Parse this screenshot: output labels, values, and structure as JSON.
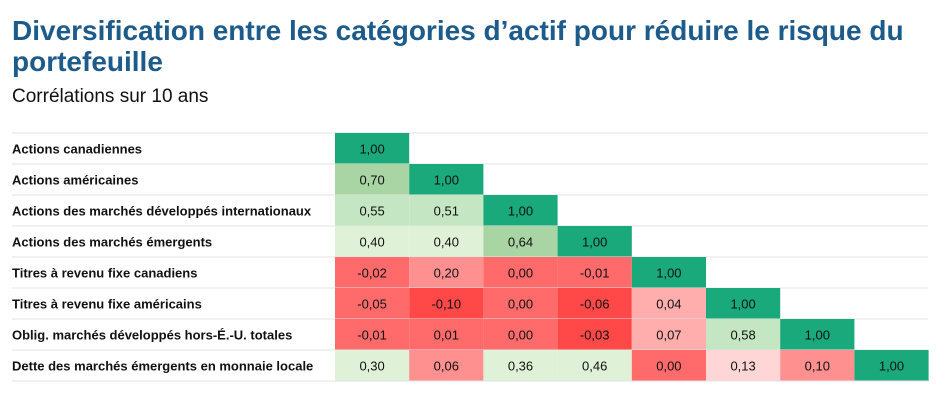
{
  "title": "Diversification entre les catégories d’actif pour réduire le risque du portefeuille",
  "subtitle": "Corrélations sur 10 ans",
  "chart_data": {
    "type": "heatmap",
    "title": "Diversification entre les catégories d’actif pour réduire le risque du portefeuille",
    "subtitle": "Corrélations sur 10 ans",
    "rows": [
      "Actions canadiennes",
      "Actions américaines",
      "Actions des marchés développés internationaux",
      "Actions des marchés émergents",
      "Titres à revenu fixe canadiens",
      "Titres à revenu fixe américains",
      "Oblig. marchés développés hors-É.-U. totales",
      "Dette des marchés émergents en monnaie locale"
    ],
    "values": [
      [
        1.0
      ],
      [
        0.7,
        1.0
      ],
      [
        0.55,
        0.51,
        1.0
      ],
      [
        0.4,
        0.4,
        0.64,
        1.0
      ],
      [
        -0.02,
        0.2,
        0.0,
        -0.01,
        1.0
      ],
      [
        -0.05,
        -0.1,
        0.0,
        -0.06,
        0.04,
        1.0
      ],
      [
        -0.01,
        0.01,
        0.0,
        -0.03,
        0.07,
        0.58,
        1.0
      ],
      [
        0.3,
        0.06,
        0.36,
        0.46,
        0.0,
        0.13,
        0.1,
        1.0
      ]
    ],
    "labels": [
      [
        "1,00"
      ],
      [
        "0,70",
        "1,00"
      ],
      [
        "0,55",
        "0,51",
        "1,00"
      ],
      [
        "0,40",
        "0,40",
        "0,64",
        "1,00"
      ],
      [
        "-0,02",
        "0,20",
        "0,00",
        "-0,01",
        "1,00"
      ],
      [
        "-0,05",
        "-0,10",
        "0,00",
        "-0,06",
        "0,04",
        "1,00"
      ],
      [
        "-0,01",
        "0,01",
        "0,00",
        "-0,03",
        "0,07",
        "0,58",
        "1,00"
      ],
      [
        "0,30",
        "0,06",
        "0,36",
        "0,46",
        "0,00",
        "0,13",
        "0,10",
        "1,00"
      ]
    ],
    "cell_colors": [
      [
        "#1aa97a"
      ],
      [
        "#a8d5a3",
        "#1aa97a"
      ],
      [
        "#c5e6c2",
        "#c5e6c2",
        "#1aa97a"
      ],
      [
        "#dff2d8",
        "#dff2d8",
        "#a8d5a3",
        "#1aa97a"
      ],
      [
        "#ff6b6b",
        "#ff9090",
        "#ff6b6b",
        "#ff6b6b",
        "#1aa97a"
      ],
      [
        "#ff6b6b",
        "#ff4848",
        "#ff6b6b",
        "#ff4848",
        "#ffadad",
        "#1aa97a"
      ],
      [
        "#ff6b6b",
        "#ff6b6b",
        "#ff6b6b",
        "#ff4848",
        "#ffadad",
        "#c5e6c2",
        "#1aa97a"
      ],
      [
        "#dff2d8",
        "#ff9090",
        "#dff2d8",
        "#dff2d8",
        "#ff6b6b",
        "#ffd6d6",
        "#ff9090",
        "#1aa97a"
      ]
    ],
    "colors": {
      "title": "#1d5b8a",
      "grid_line": "#e3e3e3"
    }
  }
}
